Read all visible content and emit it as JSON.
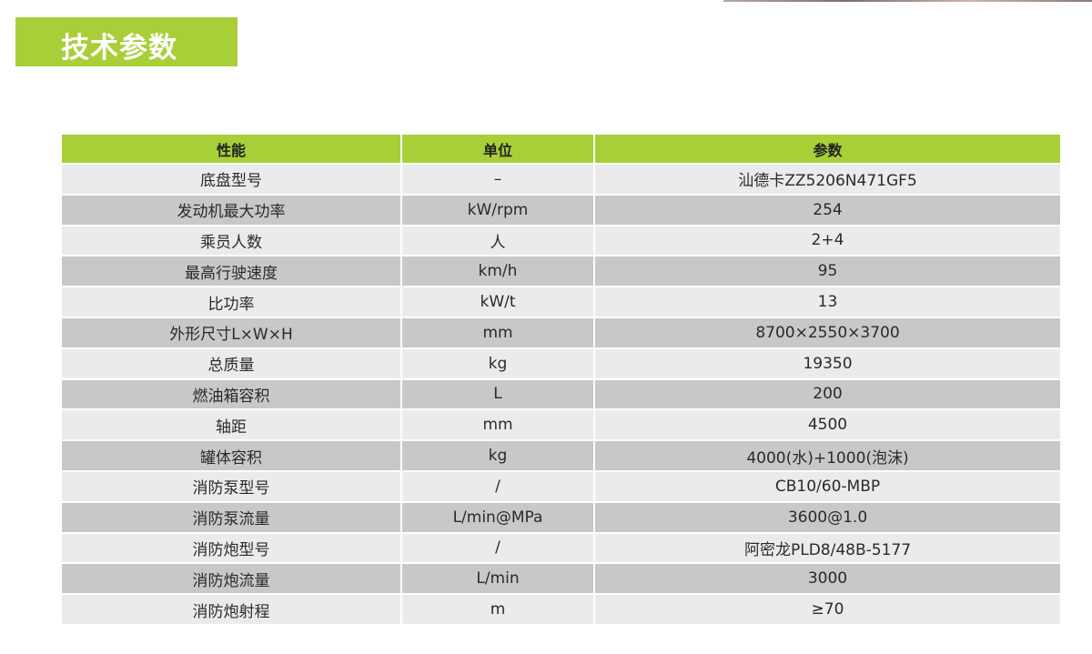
{
  "title": "技术参数",
  "colors": {
    "accent": "#a8cf38",
    "row_light": "#ebebec",
    "row_dark": "#c8c8c9"
  },
  "table": {
    "headers": [
      "性能",
      "单位",
      "参数"
    ],
    "rows": [
      [
        "底盘型号",
        "–",
        "汕德卡ZZ5206N471GF5"
      ],
      [
        "发动机最大功率",
        "kW/rpm",
        "254"
      ],
      [
        "乘员人数",
        "人",
        "2+4"
      ],
      [
        "最高行驶速度",
        "km/h",
        "95"
      ],
      [
        "比功率",
        "kW/t",
        "13"
      ],
      [
        "外形尺寸L×W×H",
        "mm",
        "8700×2550×3700"
      ],
      [
        "总质量",
        "kg",
        "19350"
      ],
      [
        "燃油箱容积",
        "L",
        "200"
      ],
      [
        "轴距",
        "mm",
        "4500"
      ],
      [
        "罐体容积",
        "kg",
        "4000(水)+1000(泡沫)"
      ],
      [
        "消防泵型号",
        "/",
        "CB10/60-MBP"
      ],
      [
        "消防泵流量",
        "L/min@MPa",
        "3600@1.0"
      ],
      [
        "消防炮型号",
        "/",
        "阿密龙PLD8/48B-5177"
      ],
      [
        "消防炮流量",
        "L/min",
        "3000"
      ],
      [
        "消防炮射程",
        "m",
        "≥70"
      ]
    ]
  }
}
